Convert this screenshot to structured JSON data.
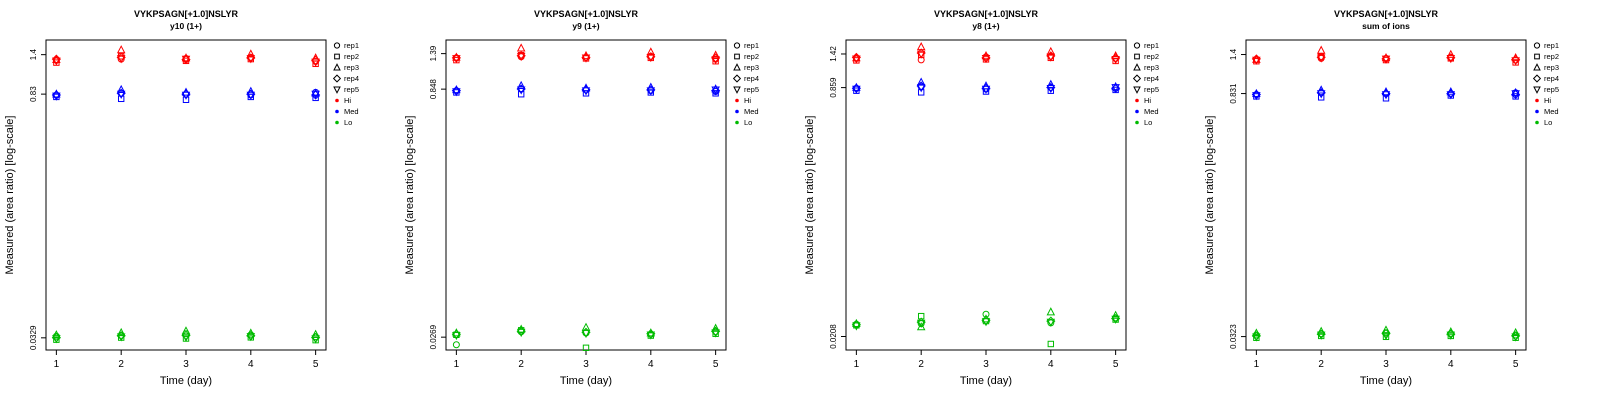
{
  "page": {
    "background": "#ffffff"
  },
  "legend": {
    "reps": [
      {
        "label": "rep1",
        "shape": "circle"
      },
      {
        "label": "rep2",
        "shape": "square"
      },
      {
        "label": "rep3",
        "shape": "triangle-up"
      },
      {
        "label": "rep4",
        "shape": "diamond"
      },
      {
        "label": "rep5",
        "shape": "triangle-down"
      }
    ],
    "levels": [
      {
        "label": "Hi",
        "color": "#FF0000"
      },
      {
        "label": "Med",
        "color": "#0000FF"
      },
      {
        "label": "Lo",
        "color": "#00BB00"
      }
    ]
  },
  "chart_data": [
    {
      "type": "scatter",
      "title": "VYKPSAGN[+1.0]NSLYR",
      "subtitle": "y10 (1+)",
      "xlabel": "Time (day)",
      "ylabel": "Measured (area ratio) [log-scale]",
      "x": [
        1,
        2,
        3,
        4,
        5
      ],
      "xtick_labels": [
        "1",
        "2",
        "3",
        "4",
        "5"
      ],
      "yscale": "log",
      "ylim": [
        0.028,
        1.7
      ],
      "yticks": [
        {
          "value": 1.4,
          "label": "1.4"
        },
        {
          "value": 0.83,
          "label": "0.83"
        },
        {
          "value": 0.0329,
          "label": "0.0329"
        }
      ],
      "series": [
        {
          "name": "Hi",
          "color": "#FF0000",
          "rep_values": [
            [
              1.3,
              1.32,
              1.33,
              1.35,
              1.28
            ],
            [
              1.26,
              1.37,
              1.29,
              1.32,
              1.24
            ],
            [
              1.31,
              1.49,
              1.34,
              1.41,
              1.34
            ],
            [
              1.32,
              1.35,
              1.31,
              1.34,
              1.3
            ],
            [
              1.29,
              1.33,
              1.32,
              1.33,
              1.27
            ]
          ]
        },
        {
          "name": "Med",
          "color": "#0000FF",
          "rep_values": [
            [
              0.82,
              0.84,
              0.83,
              0.82,
              0.85
            ],
            [
              0.8,
              0.78,
              0.77,
              0.8,
              0.79
            ],
            [
              0.83,
              0.88,
              0.85,
              0.86,
              0.84
            ],
            [
              0.82,
              0.84,
              0.83,
              0.83,
              0.82
            ],
            [
              0.81,
              0.83,
              0.82,
              0.82,
              0.83
            ]
          ]
        },
        {
          "name": "Lo",
          "color": "#00BB00",
          "rep_values": [
            [
              0.0336,
              0.034,
              0.0347,
              0.0342,
              0.0334
            ],
            [
              0.0321,
              0.033,
              0.0326,
              0.0331,
              0.0319
            ],
            [
              0.0342,
              0.0352,
              0.036,
              0.035,
              0.0344
            ],
            [
              0.033,
              0.0338,
              0.034,
              0.0338,
              0.033
            ],
            [
              0.0326,
              0.0334,
              0.0332,
              0.0335,
              0.0325
            ]
          ]
        }
      ]
    },
    {
      "type": "scatter",
      "title": "VYKPSAGN[+1.0]NSLYR",
      "subtitle": "y9 (1+)",
      "xlabel": "Time (day)",
      "ylabel": "Measured (area ratio) [log-scale]",
      "x": [
        1,
        2,
        3,
        4,
        5
      ],
      "xtick_labels": [
        "1",
        "2",
        "3",
        "4",
        "5"
      ],
      "yscale": "log",
      "ylim": [
        0.0225,
        1.68
      ],
      "yticks": [
        {
          "value": 1.39,
          "label": "1.39"
        },
        {
          "value": 0.848,
          "label": "0.848"
        },
        {
          "value": 0.0269,
          "label": "0.0269"
        }
      ],
      "series": [
        {
          "name": "Hi",
          "color": "#FF0000",
          "rep_values": [
            [
              1.31,
              1.33,
              1.32,
              1.34,
              1.29
            ],
            [
              1.27,
              1.36,
              1.3,
              1.31,
              1.25
            ],
            [
              1.32,
              1.5,
              1.35,
              1.42,
              1.36
            ],
            [
              1.31,
              1.35,
              1.32,
              1.33,
              1.31
            ],
            [
              1.3,
              1.34,
              1.31,
              1.32,
              1.28
            ]
          ]
        },
        {
          "name": "Med",
          "color": "#0000FF",
          "rep_values": [
            [
              0.83,
              0.85,
              0.84,
              0.83,
              0.82
            ],
            [
              0.81,
              0.79,
              0.8,
              0.81,
              0.8
            ],
            [
              0.84,
              0.89,
              0.86,
              0.87,
              0.85
            ],
            [
              0.83,
              0.85,
              0.84,
              0.84,
              0.83
            ],
            [
              0.82,
              0.84,
              0.83,
              0.83,
              0.84
            ]
          ]
        },
        {
          "name": "Lo",
          "color": "#00BB00",
          "rep_values": [
            [
              0.0242,
              0.029,
              0.0285,
              0.028,
              0.029
            ],
            [
              0.0278,
              0.0296,
              0.0232,
              0.0275,
              0.0282
            ],
            [
              0.0285,
              0.03,
              0.0308,
              0.0285,
              0.0304
            ],
            [
              0.028,
              0.0292,
              0.0288,
              0.0282,
              0.0292
            ],
            [
              0.0276,
              0.0288,
              0.0284,
              0.0278,
              0.0286
            ]
          ]
        }
      ]
    },
    {
      "type": "scatter",
      "title": "VYKPSAGN[+1.0]NSLYR",
      "subtitle": "y8 (1+)",
      "xlabel": "Time (day)",
      "ylabel": "Measured (area ratio) [log-scale]",
      "x": [
        1,
        2,
        3,
        4,
        5
      ],
      "xtick_labels": [
        "1",
        "2",
        "3",
        "4",
        "5"
      ],
      "yscale": "log",
      "ylim": [
        0.017,
        1.75
      ],
      "yticks": [
        {
          "value": 1.42,
          "label": "1.42"
        },
        {
          "value": 0.859,
          "label": "0.859"
        },
        {
          "value": 0.0208,
          "label": "0.0208"
        }
      ],
      "series": [
        {
          "name": "Hi",
          "color": "#FF0000",
          "rep_values": [
            [
              1.33,
              1.3,
              1.36,
              1.37,
              1.33
            ],
            [
              1.29,
              1.4,
              1.31,
              1.34,
              1.28
            ],
            [
              1.34,
              1.58,
              1.38,
              1.47,
              1.38
            ],
            [
              1.35,
              1.44,
              1.34,
              1.38,
              1.34
            ],
            [
              1.32,
              1.42,
              1.33,
              1.36,
              1.31
            ]
          ]
        },
        {
          "name": "Med",
          "color": "#0000FF",
          "rep_values": [
            [
              0.85,
              0.87,
              0.84,
              0.86,
              0.85
            ],
            [
              0.82,
              0.8,
              0.81,
              0.82,
              0.83
            ],
            [
              0.86,
              0.93,
              0.88,
              0.9,
              0.87
            ],
            [
              0.85,
              0.88,
              0.85,
              0.86,
              0.85
            ],
            [
              0.84,
              0.86,
              0.84,
              0.85,
              0.86
            ]
          ]
        },
        {
          "name": "Lo",
          "color": "#00BB00",
          "rep_values": [
            [
              0.025,
              0.0252,
              0.029,
              0.0255,
              0.0275
            ],
            [
              0.0246,
              0.0282,
              0.0262,
              0.0186,
              0.0268
            ],
            [
              0.0252,
              0.024,
              0.027,
              0.03,
              0.0285
            ],
            [
              0.0248,
              0.0258,
              0.0265,
              0.0262,
              0.0272
            ],
            [
              0.0244,
              0.0254,
              0.026,
              0.0258,
              0.027
            ]
          ]
        }
      ]
    },
    {
      "type": "scatter",
      "title": "VYKPSAGN[+1.0]NSLYR",
      "subtitle": "sum of ions",
      "xlabel": "Time (day)",
      "ylabel": "Measured (area ratio) [log-scale]",
      "x": [
        1,
        2,
        3,
        4,
        5
      ],
      "xtick_labels": [
        "1",
        "2",
        "3",
        "4",
        "5"
      ],
      "yscale": "log",
      "ylim": [
        0.027,
        1.7
      ],
      "yticks": [
        {
          "value": 1.4,
          "label": "1.4"
        },
        {
          "value": 0.831,
          "label": "0.831"
        },
        {
          "value": 0.0323,
          "label": "0.0323"
        }
      ],
      "series": [
        {
          "name": "Hi",
          "color": "#FF0000",
          "rep_values": [
            [
              1.31,
              1.33,
              1.33,
              1.35,
              1.3
            ],
            [
              1.28,
              1.36,
              1.3,
              1.33,
              1.26
            ],
            [
              1.31,
              1.48,
              1.34,
              1.4,
              1.34
            ],
            [
              1.32,
              1.35,
              1.32,
              1.34,
              1.31
            ],
            [
              1.3,
              1.34,
              1.32,
              1.33,
              1.29
            ]
          ]
        },
        {
          "name": "Med",
          "color": "#0000FF",
          "rep_values": [
            [
              0.82,
              0.84,
              0.83,
              0.83,
              0.84
            ],
            [
              0.8,
              0.79,
              0.78,
              0.81,
              0.8
            ],
            [
              0.83,
              0.87,
              0.85,
              0.85,
              0.84
            ],
            [
              0.82,
              0.84,
              0.83,
              0.83,
              0.82
            ],
            [
              0.81,
              0.83,
              0.82,
              0.82,
              0.83
            ]
          ]
        },
        {
          "name": "Lo",
          "color": "#00BB00",
          "rep_values": [
            [
              0.033,
              0.0336,
              0.034,
              0.0336,
              0.033
            ],
            [
              0.0318,
              0.0326,
              0.0322,
              0.0326,
              0.0318
            ],
            [
              0.0338,
              0.0346,
              0.0352,
              0.0344,
              0.034
            ],
            [
              0.0326,
              0.0334,
              0.0336,
              0.0334,
              0.0326
            ],
            [
              0.0322,
              0.033,
              0.0328,
              0.033,
              0.0322
            ]
          ]
        }
      ]
    }
  ]
}
